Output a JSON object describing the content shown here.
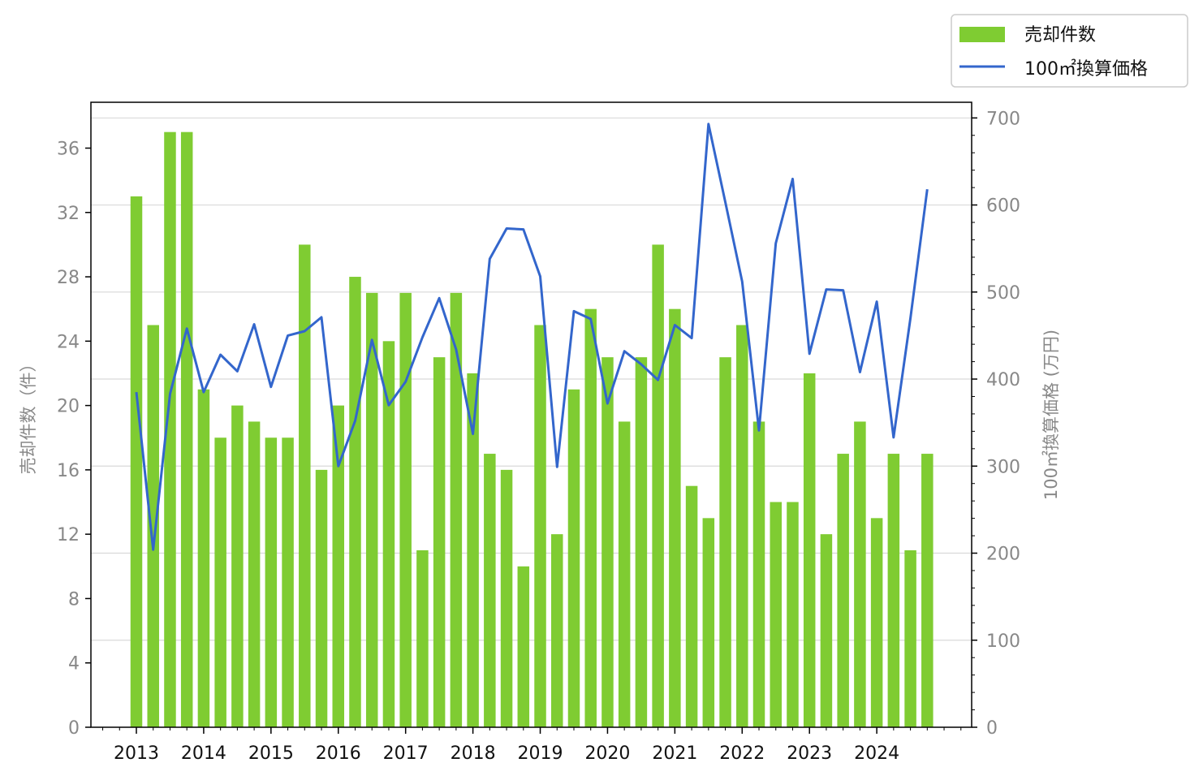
{
  "chart_data": {
    "type": "bar+line",
    "x_tick_labels": [
      "2013",
      "2014",
      "2015",
      "2016",
      "2017",
      "2018",
      "2019",
      "2020",
      "2021",
      "2022",
      "2023",
      "2024"
    ],
    "series": [
      {
        "name": "売却件数",
        "type": "bar",
        "axis": "left",
        "values": [
          33,
          25,
          37,
          37,
          21,
          18,
          20,
          19,
          18,
          18,
          30,
          16,
          20,
          28,
          27,
          24,
          27,
          11,
          23,
          27,
          22,
          17,
          16,
          10,
          25,
          12,
          21,
          26,
          23,
          19,
          23,
          30,
          26,
          15,
          13,
          23,
          25,
          19,
          14,
          14,
          22,
          12,
          17,
          19,
          13,
          17,
          11,
          17
        ]
      },
      {
        "name": "100㎡換算価格",
        "type": "line",
        "axis": "right",
        "values": [
          385,
          204,
          383,
          458,
          385,
          428,
          409,
          463,
          391,
          450,
          455,
          471,
          300,
          352,
          445,
          370,
          397,
          448,
          493,
          434,
          337,
          538,
          573,
          572,
          518,
          299,
          478,
          469,
          372,
          432,
          417,
          399,
          462,
          447,
          693,
          603,
          512,
          341,
          556,
          630,
          429,
          503,
          502,
          408,
          489,
          333,
          470,
          618
        ]
      }
    ],
    "left_axis": {
      "label": "売却件数（件）",
      "ylim": [
        0,
        38.85
      ],
      "ticks": [
        0,
        4,
        8,
        12,
        16,
        20,
        24,
        28,
        32,
        36
      ]
    },
    "right_axis": {
      "label": "100㎡換算価格 (万円)",
      "ylim": [
        0,
        718
      ],
      "ticks": [
        0,
        100,
        200,
        300,
        400,
        500,
        600,
        700
      ]
    },
    "grid": "horizontal, right axis",
    "legend_position": "top-right, outside plot",
    "colors": {
      "bar": "#7fcc32",
      "line": "#3366cc",
      "tick_label": "#888888",
      "year_label": "#111111",
      "grid": "#d9d9d9"
    }
  }
}
